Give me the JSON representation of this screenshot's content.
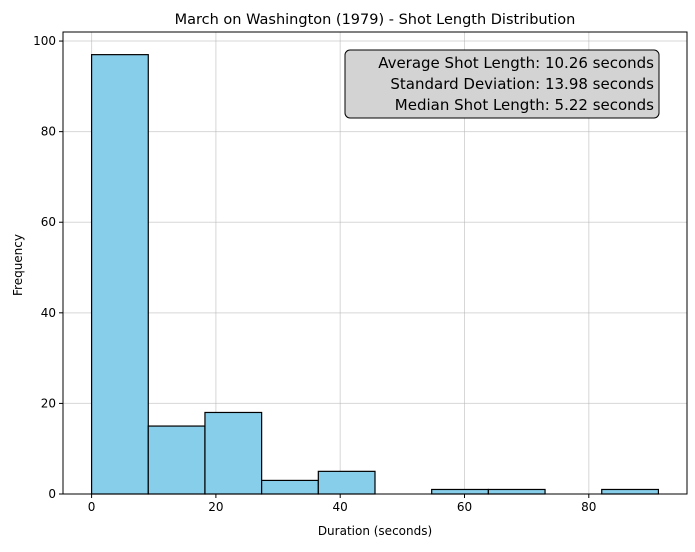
{
  "chart_data": {
    "type": "bar",
    "title": "March on Washington (1979) - Shot Length Distribution",
    "xlabel": "Duration (seconds)",
    "ylabel": "Frequency",
    "bin_edges": [
      0.0,
      9.12,
      18.24,
      27.36,
      36.48,
      45.6,
      54.72,
      63.84,
      72.96,
      82.08,
      91.2
    ],
    "values": [
      97,
      15,
      18,
      3,
      5,
      0,
      1,
      1,
      0,
      1
    ],
    "xlim": [
      -4.6,
      95.8
    ],
    "ylim": [
      0,
      102
    ],
    "xticks": [
      0,
      20,
      40,
      60,
      80
    ],
    "yticks": [
      0,
      20,
      40,
      60,
      80,
      100
    ],
    "grid": true,
    "bar_color": "#87ceeb",
    "edge_color": "#000000",
    "annotation": {
      "lines": [
        "Average Shot Length: 10.26 seconds",
        "Standard Deviation: 13.98 seconds",
        "Median Shot Length: 5.22 seconds"
      ],
      "placement": "top-right",
      "box_color": "#d3d3d3"
    }
  }
}
